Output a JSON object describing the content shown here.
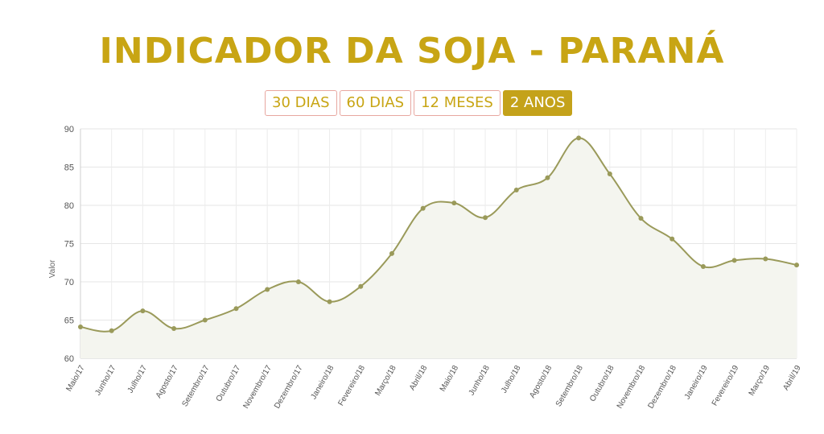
{
  "title": "INDICADOR DA SOJA - PARANÁ",
  "range_tabs": [
    {
      "label": "30 DIAS",
      "active": false
    },
    {
      "label": "60 DIAS",
      "active": false
    },
    {
      "label": "12 MESES",
      "active": false
    },
    {
      "label": "2 ANOS",
      "active": true
    }
  ],
  "colors": {
    "accent": "#c8a514",
    "line": "#9a9a5a",
    "fill": "#f4f5ef",
    "tab_border": "#e8a7a0"
  },
  "chart_data": {
    "type": "line",
    "ylabel": "Valor",
    "xlabel": "",
    "ylim": [
      60,
      90
    ],
    "yticks": [
      60,
      65,
      70,
      75,
      80,
      85,
      90
    ],
    "grid": true,
    "categories": [
      "Maio/17",
      "Junho/17",
      "Julho/17",
      "Agosto/17",
      "Setembro/17",
      "Outubro/17",
      "Novembro/17",
      "Dezembro/17",
      "Janeiro/18",
      "Fevereiro/18",
      "Março/18",
      "Abril/18",
      "Maio/18",
      "Junho/18",
      "Julho/18",
      "Agosto/18",
      "Setembro/18",
      "Outubro/18",
      "Novembro/18",
      "Dezembro/18",
      "Janeiro/19",
      "Fevereiro/19",
      "Março/19",
      "Abril/19"
    ],
    "series": [
      {
        "values": [
          64.1,
          63.6,
          66.2,
          63.9,
          65.0,
          66.5,
          69.0,
          70.0,
          67.4,
          69.4,
          73.7,
          79.6,
          80.3,
          78.4,
          82.0,
          83.6,
          88.8,
          84.1,
          78.3,
          75.6,
          72.0,
          72.8,
          73.0,
          72.2
        ]
      }
    ]
  }
}
